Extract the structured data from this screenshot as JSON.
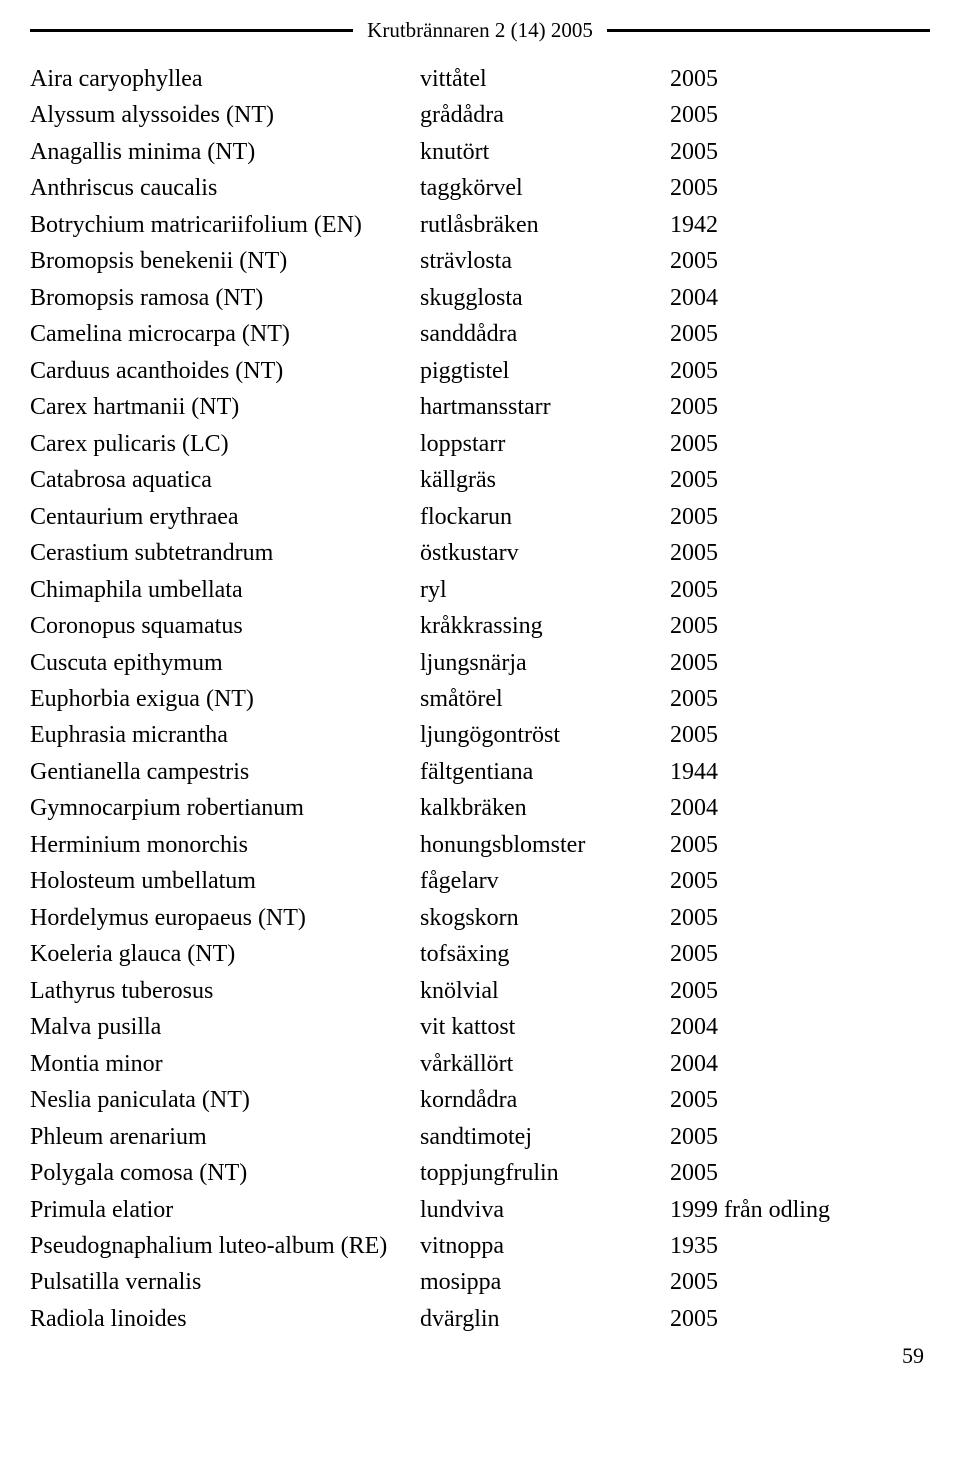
{
  "header": {
    "title": "Krutbrännaren 2 (14) 2005"
  },
  "rows": [
    {
      "scientific": "Aira caryophyllea",
      "common": "vittåtel",
      "year": "2005"
    },
    {
      "scientific": "Alyssum alyssoides (NT)",
      "common": "grådådra",
      "year": "2005"
    },
    {
      "scientific": "Anagallis minima (NT)",
      "common": "knutört",
      "year": "2005"
    },
    {
      "scientific": "Anthriscus caucalis",
      "common": "taggkörvel",
      "year": "2005"
    },
    {
      "scientific": "Botrychium matricariifolium (EN)",
      "common": "rutlåsbräken",
      "year": "1942"
    },
    {
      "scientific": "Bromopsis benekenii (NT)",
      "common": "strävlosta",
      "year": "2005"
    },
    {
      "scientific": "Bromopsis ramosa (NT)",
      "common": "skugglosta",
      "year": "2004"
    },
    {
      "scientific": "Camelina microcarpa (NT)",
      "common": "sanddådra",
      "year": "2005"
    },
    {
      "scientific": "Carduus acanthoides (NT)",
      "common": "piggtistel",
      "year": "2005"
    },
    {
      "scientific": "Carex hartmanii (NT)",
      "common": "hartmansstarr",
      "year": "2005"
    },
    {
      "scientific": "Carex pulicaris (LC)",
      "common": "loppstarr",
      "year": "2005"
    },
    {
      "scientific": "Catabrosa aquatica",
      "common": "källgräs",
      "year": "2005"
    },
    {
      "scientific": "Centaurium erythraea",
      "common": "flockarun",
      "year": "2005"
    },
    {
      "scientific": "Cerastium subtetrandrum",
      "common": "östkustarv",
      "year": "2005"
    },
    {
      "scientific": "Chimaphila umbellata",
      "common": "ryl",
      "year": "2005"
    },
    {
      "scientific": "Coronopus squamatus",
      "common": "kråkkrassing",
      "year": "2005"
    },
    {
      "scientific": "Cuscuta epithymum",
      "common": "ljungsnärja",
      "year": "2005"
    },
    {
      "scientific": "Euphorbia exigua (NT)",
      "common": "småtörel",
      "year": "2005"
    },
    {
      "scientific": "Euphrasia micrantha",
      "common": "ljungögontröst",
      "year": "2005"
    },
    {
      "scientific": "Gentianella campestris",
      "common": "fältgentiana",
      "year": "1944"
    },
    {
      "scientific": "Gymnocarpium robertianum",
      "common": "kalkbräken",
      "year": "2004"
    },
    {
      "scientific": "Herminium monorchis",
      "common": "honungsblomster",
      "year": "2005"
    },
    {
      "scientific": "Holosteum umbellatum",
      "common": "fågelarv",
      "year": "2005"
    },
    {
      "scientific": "Hordelymus europaeus (NT)",
      "common": "skogskorn",
      "year": "2005"
    },
    {
      "scientific": "Koeleria glauca (NT)",
      "common": "tofsäxing",
      "year": "2005"
    },
    {
      "scientific": "Lathyrus tuberosus",
      "common": "knölvial",
      "year": "2005"
    },
    {
      "scientific": "Malva pusilla",
      "common": "vit kattost",
      "year": "2004"
    },
    {
      "scientific": "Montia minor",
      "common": "vårkällört",
      "year": "2004"
    },
    {
      "scientific": "Neslia paniculata (NT)",
      "common": "korndådra",
      "year": "2005"
    },
    {
      "scientific": "Phleum arenarium",
      "common": "sandtimotej",
      "year": "2005"
    },
    {
      "scientific": "Polygala comosa (NT)",
      "common": "toppjungfrulin",
      "year": "2005"
    },
    {
      "scientific": "Primula elatior",
      "common": "lundviva",
      "year": "1999 från odling"
    },
    {
      "scientific": "Pseudognaphalium luteo-album (RE)",
      "common": "vitnoppa",
      "year": "1935"
    },
    {
      "scientific": "Pulsatilla vernalis",
      "common": "mosippa",
      "year": "2005"
    },
    {
      "scientific": "Radiola linoides",
      "common": "dvärglin",
      "year": "2005"
    }
  ],
  "page_number": "59"
}
